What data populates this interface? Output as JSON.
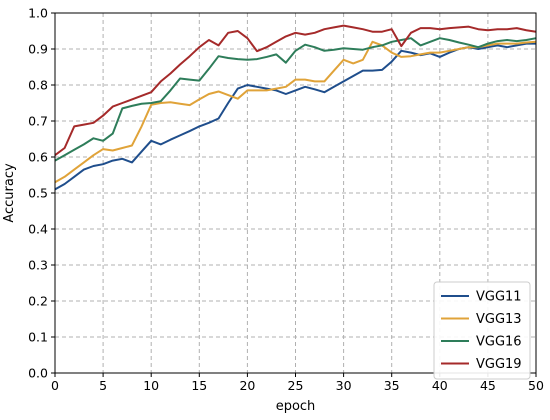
{
  "chart_data": {
    "type": "line",
    "title": "",
    "xlabel": "epoch",
    "ylabel": "Accuracy",
    "xlim": [
      0,
      50
    ],
    "ylim": [
      0.0,
      1.0
    ],
    "xticks": [
      0,
      5,
      10,
      15,
      20,
      25,
      30,
      35,
      40,
      45,
      50
    ],
    "yticks": [
      0.0,
      0.1,
      0.2,
      0.3,
      0.4,
      0.5,
      0.6,
      0.7,
      0.8,
      0.9,
      1.0
    ],
    "grid": true,
    "legend_position": "lower-right",
    "x": [
      0,
      1,
      2,
      3,
      4,
      5,
      6,
      7,
      8,
      9,
      10,
      11,
      12,
      13,
      14,
      15,
      16,
      17,
      18,
      19,
      20,
      21,
      22,
      23,
      24,
      25,
      26,
      27,
      28,
      29,
      30,
      31,
      32,
      33,
      34,
      35,
      36,
      37,
      38,
      39,
      40,
      41,
      42,
      43,
      44,
      45,
      46,
      47,
      48,
      49,
      50
    ],
    "series": [
      {
        "name": "VGG11",
        "color": "#1f4e8c",
        "values": [
          0.51,
          0.525,
          0.545,
          0.565,
          0.575,
          0.58,
          0.59,
          0.595,
          0.585,
          0.615,
          0.645,
          0.635,
          0.648,
          0.66,
          0.672,
          0.685,
          0.695,
          0.707,
          0.75,
          0.79,
          0.8,
          0.795,
          0.79,
          0.785,
          0.775,
          0.785,
          0.795,
          0.788,
          0.78,
          0.795,
          0.81,
          0.825,
          0.84,
          0.84,
          0.842,
          0.865,
          0.895,
          0.89,
          0.883,
          0.888,
          0.878,
          0.89,
          0.9,
          0.905,
          0.9,
          0.905,
          0.91,
          0.905,
          0.91,
          0.915,
          0.915
        ]
      },
      {
        "name": "VGG13",
        "color": "#e0a339",
        "values": [
          0.53,
          0.545,
          0.565,
          0.585,
          0.605,
          0.622,
          0.618,
          0.625,
          0.632,
          0.685,
          0.745,
          0.75,
          0.752,
          0.748,
          0.744,
          0.76,
          0.775,
          0.782,
          0.772,
          0.762,
          0.785,
          0.785,
          0.785,
          0.79,
          0.795,
          0.815,
          0.815,
          0.81,
          0.81,
          0.84,
          0.87,
          0.86,
          0.87,
          0.92,
          0.91,
          0.89,
          0.878,
          0.88,
          0.885,
          0.89,
          0.89,
          0.895,
          0.9,
          0.905,
          0.905,
          0.91,
          0.915,
          0.915,
          0.915,
          0.918,
          0.92
        ]
      },
      {
        "name": "VGG16",
        "color": "#2e7d5a",
        "values": [
          0.59,
          0.605,
          0.62,
          0.635,
          0.652,
          0.645,
          0.665,
          0.735,
          0.742,
          0.748,
          0.75,
          0.755,
          0.785,
          0.818,
          0.815,
          0.812,
          0.845,
          0.88,
          0.875,
          0.872,
          0.87,
          0.872,
          0.878,
          0.885,
          0.862,
          0.895,
          0.912,
          0.905,
          0.895,
          0.898,
          0.902,
          0.9,
          0.898,
          0.905,
          0.91,
          0.92,
          0.925,
          0.93,
          0.91,
          0.92,
          0.93,
          0.925,
          0.918,
          0.912,
          0.905,
          0.915,
          0.922,
          0.925,
          0.922,
          0.925,
          0.93
        ]
      },
      {
        "name": "VGG19",
        "color": "#a52a2a",
        "values": [
          0.605,
          0.625,
          0.685,
          0.69,
          0.695,
          0.715,
          0.74,
          0.75,
          0.76,
          0.77,
          0.78,
          0.81,
          0.832,
          0.857,
          0.88,
          0.905,
          0.925,
          0.91,
          0.945,
          0.95,
          0.93,
          0.894,
          0.905,
          0.92,
          0.935,
          0.945,
          0.94,
          0.945,
          0.955,
          0.96,
          0.965,
          0.96,
          0.955,
          0.948,
          0.948,
          0.955,
          0.908,
          0.945,
          0.958,
          0.958,
          0.955,
          0.958,
          0.96,
          0.962,
          0.955,
          0.952,
          0.955,
          0.955,
          0.958,
          0.952,
          0.948
        ]
      }
    ]
  }
}
